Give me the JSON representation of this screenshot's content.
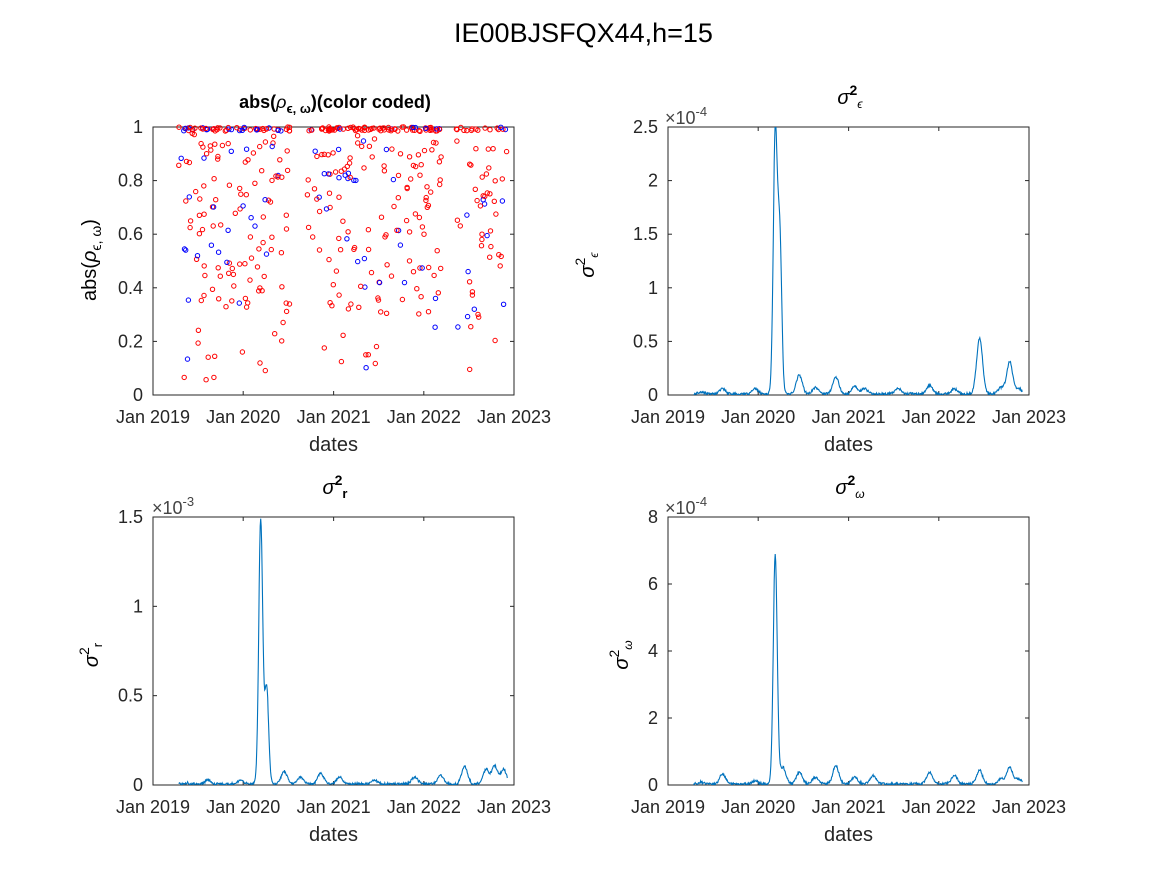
{
  "figure": {
    "suptitle": "IE00BJSFQX44,h=15"
  },
  "chart_data": [
    {
      "id": "rho",
      "type": "scatter",
      "title": "abs(ρϵ, ω)(color coded)",
      "xlabel": "dates",
      "ylabel": "abs(ρϵ, ω)",
      "x_ticks": [
        "Jan 2019",
        "Jan 2020",
        "Jan 2021",
        "Jan 2022",
        "Jan 2023"
      ],
      "y_ticks": [
        "0",
        "0.2",
        "0.4",
        "0.6",
        "0.8",
        "1"
      ],
      "xlim": [
        "2019-01-01",
        "2023-01-01"
      ],
      "ylim": [
        0,
        1
      ],
      "series_colors": {
        "positive": "#ff0000",
        "negative": "#0000ff"
      },
      "marker": "circle-open",
      "note": "dense red points at ~1.0; scatter of red and blue points across 0–1 from mid-2019 to late 2022"
    },
    {
      "id": "sig_eps",
      "type": "line",
      "title": "σϵ2",
      "xlabel": "dates",
      "ylabel": "σϵ2",
      "exponent": "×10-4",
      "x_ticks": [
        "Jan 2019",
        "Jan 2020",
        "Jan 2021",
        "Jan 2022",
        "Jan 2023"
      ],
      "y_ticks": [
        "0",
        "0.5",
        "1",
        "1.5",
        "2",
        "2.5"
      ],
      "xlim": [
        "2019-01-01",
        "2023-01-01"
      ],
      "ylim": [
        0,
        2.5
      ],
      "color": "#0072bd",
      "peaks": [
        {
          "date": "2019-05-15",
          "value": 0.02
        },
        {
          "date": "2019-08-10",
          "value": 0.05
        },
        {
          "date": "2019-12-20",
          "value": 0.05
        },
        {
          "date": "2020-03-10",
          "value": 2.4
        },
        {
          "date": "2020-03-28",
          "value": 1.48
        },
        {
          "date": "2020-06-15",
          "value": 0.18
        },
        {
          "date": "2020-08-20",
          "value": 0.06
        },
        {
          "date": "2020-11-10",
          "value": 0.16
        },
        {
          "date": "2021-01-25",
          "value": 0.07
        },
        {
          "date": "2021-03-05",
          "value": 0.05
        },
        {
          "date": "2021-07-20",
          "value": 0.05
        },
        {
          "date": "2021-11-25",
          "value": 0.08
        },
        {
          "date": "2022-03-05",
          "value": 0.05
        },
        {
          "date": "2022-06-15",
          "value": 0.52
        },
        {
          "date": "2022-09-10",
          "value": 0.06
        },
        {
          "date": "2022-10-15",
          "value": 0.3
        },
        {
          "date": "2022-11-20",
          "value": 0.05
        }
      ]
    },
    {
      "id": "sig_r",
      "type": "line",
      "title": "σr2",
      "xlabel": "dates",
      "ylabel": "σr2",
      "exponent": "×10-3",
      "x_ticks": [
        "Jan 2019",
        "Jan 2020",
        "Jan 2021",
        "Jan 2022",
        "Jan 2023"
      ],
      "y_ticks": [
        "0",
        "0.5",
        "1",
        "1.5"
      ],
      "xlim": [
        "2019-01-01",
        "2023-01-01"
      ],
      "ylim": [
        0,
        1.5
      ],
      "color": "#0072bd",
      "peaks": [
        {
          "date": "2019-05-15",
          "value": 0.005
        },
        {
          "date": "2019-08-10",
          "value": 0.02
        },
        {
          "date": "2019-12-20",
          "value": 0.02
        },
        {
          "date": "2020-03-12",
          "value": 1.48
        },
        {
          "date": "2020-04-05",
          "value": 0.54
        },
        {
          "date": "2020-06-15",
          "value": 0.07
        },
        {
          "date": "2020-08-20",
          "value": 0.04
        },
        {
          "date": "2020-11-10",
          "value": 0.06
        },
        {
          "date": "2021-01-25",
          "value": 0.04
        },
        {
          "date": "2021-06-15",
          "value": 0.02
        },
        {
          "date": "2021-11-25",
          "value": 0.04
        },
        {
          "date": "2022-03-10",
          "value": 0.05
        },
        {
          "date": "2022-06-15",
          "value": 0.1
        },
        {
          "date": "2022-09-10",
          "value": 0.08
        },
        {
          "date": "2022-10-15",
          "value": 0.1
        },
        {
          "date": "2022-11-20",
          "value": 0.08
        }
      ]
    },
    {
      "id": "sig_om",
      "type": "line",
      "title": "σω2",
      "xlabel": "dates",
      "ylabel": "σω2",
      "exponent": "×10-4",
      "x_ticks": [
        "Jan 2019",
        "Jan 2020",
        "Jan 2021",
        "Jan 2022",
        "Jan 2023"
      ],
      "y_ticks": [
        "0",
        "2",
        "4",
        "6",
        "8"
      ],
      "xlim": [
        "2019-01-01",
        "2023-01-01"
      ],
      "ylim": [
        0,
        8
      ],
      "color": "#0072bd",
      "peaks": [
        {
          "date": "2019-05-15",
          "value": 0.05
        },
        {
          "date": "2019-08-10",
          "value": 0.3
        },
        {
          "date": "2019-12-20",
          "value": 0.1
        },
        {
          "date": "2020-03-10",
          "value": 6.85
        },
        {
          "date": "2020-04-10",
          "value": 0.5
        },
        {
          "date": "2020-06-15",
          "value": 0.35
        },
        {
          "date": "2020-08-20",
          "value": 0.2
        },
        {
          "date": "2020-11-10",
          "value": 0.55
        },
        {
          "date": "2021-01-25",
          "value": 0.2
        },
        {
          "date": "2021-04-10",
          "value": 0.25
        },
        {
          "date": "2021-11-25",
          "value": 0.35
        },
        {
          "date": "2022-03-05",
          "value": 0.25
        },
        {
          "date": "2022-06-15",
          "value": 0.4
        },
        {
          "date": "2022-09-10",
          "value": 0.15
        },
        {
          "date": "2022-10-15",
          "value": 0.5
        },
        {
          "date": "2022-11-20",
          "value": 0.15
        }
      ]
    }
  ]
}
